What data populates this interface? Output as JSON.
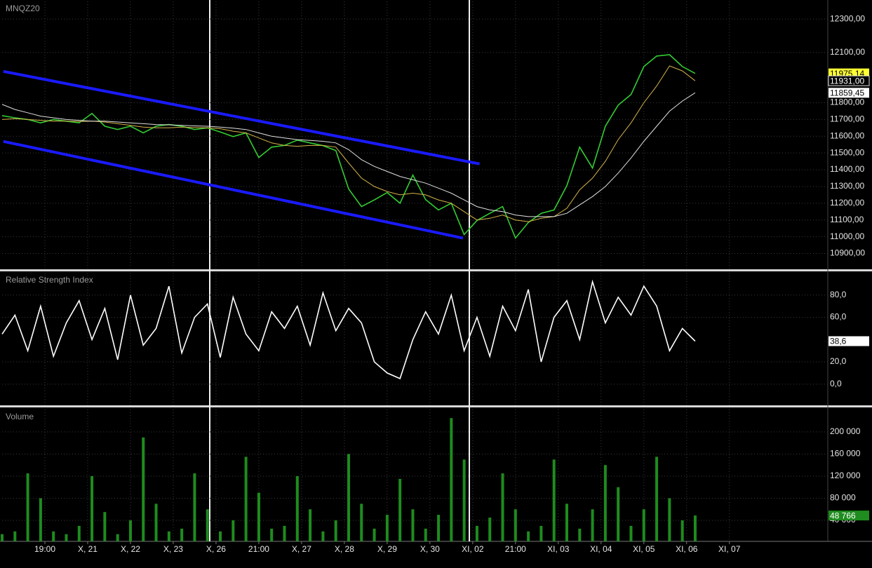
{
  "chart_data": [
    {
      "type": "line",
      "title": "MNQZ20",
      "x": [
        0,
        3,
        6,
        9,
        12,
        15,
        18,
        21,
        24,
        27,
        30,
        33,
        36,
        39,
        42,
        45,
        48,
        51,
        54,
        57,
        60,
        63,
        66,
        69,
        72,
        75,
        78,
        81,
        84,
        87,
        90,
        93,
        96,
        99,
        102,
        105,
        108,
        111,
        114,
        117,
        120,
        123,
        126,
        129,
        132,
        135,
        138,
        141,
        144,
        147,
        150,
        153,
        156,
        159,
        162
      ],
      "xlim": [
        0,
        193
      ],
      "ylim": [
        10810,
        12405
      ],
      "yticks": [
        {
          "value": 12300,
          "label": "12300,00"
        },
        {
          "value": 12100,
          "label": "12100,00"
        },
        {
          "value": 11800,
          "label": "11800,00"
        },
        {
          "value": 11700,
          "label": "11700,00"
        },
        {
          "value": 11600,
          "label": "11600,00"
        },
        {
          "value": 11500,
          "label": "11500,00"
        },
        {
          "value": 11400,
          "label": "11400,00"
        },
        {
          "value": 11300,
          "label": "11300,00"
        },
        {
          "value": 11200,
          "label": "11200,00"
        },
        {
          "value": 11100,
          "label": "11100,00"
        },
        {
          "value": 11000,
          "label": "11000,00"
        },
        {
          "value": 10900,
          "label": "10900,00"
        }
      ],
      "series": [
        {
          "color": "#33cc33",
          "label_color": "#ffff33",
          "values": [
            11723,
            11710,
            11700,
            11680,
            11700,
            11690,
            11680,
            11736,
            11660,
            11640,
            11660,
            11620,
            11660,
            11670,
            11660,
            11640,
            11650,
            11625,
            11598,
            11620,
            11473,
            11535,
            11545,
            11577,
            11560,
            11544,
            11515,
            11285,
            11180,
            11220,
            11264,
            11200,
            11368,
            11222,
            11160,
            11200,
            11013,
            11097,
            11140,
            11180,
            10992,
            11085,
            11140,
            11160,
            11305,
            11535,
            11410,
            11660,
            11786,
            11849,
            12016,
            12079,
            12087,
            12016,
            11975.14
          ],
          "value_labels": [
            null,
            null,
            null,
            null,
            null,
            null,
            null,
            null,
            null,
            null,
            null,
            null,
            null,
            null,
            null,
            null,
            null,
            null,
            null,
            null,
            null,
            null,
            null,
            null,
            null,
            null,
            null,
            null,
            null,
            null,
            null,
            null,
            null,
            null,
            null,
            null,
            null,
            null,
            null,
            null,
            null,
            null,
            null,
            null,
            null,
            null,
            null,
            null,
            null,
            null,
            null,
            null,
            null,
            null,
            "11975,14"
          ]
        },
        {
          "color": "#d4b44a",
          "label_color": "#000000",
          "values": [
            11700,
            11705,
            11700,
            11695,
            11690,
            11690,
            11688,
            11690,
            11685,
            11675,
            11665,
            11655,
            11650,
            11650,
            11655,
            11652,
            11650,
            11645,
            11630,
            11620,
            11590,
            11560,
            11545,
            11540,
            11545,
            11545,
            11535,
            11440,
            11350,
            11300,
            11270,
            11250,
            11260,
            11250,
            11220,
            11200,
            11150,
            11100,
            11110,
            11130,
            11100,
            11090,
            11110,
            11120,
            11170,
            11280,
            11350,
            11450,
            11580,
            11680,
            11800,
            11900,
            12020,
            11990,
            11931
          ],
          "value_labels": [
            null,
            null,
            null,
            null,
            null,
            null,
            null,
            null,
            null,
            null,
            null,
            null,
            null,
            null,
            null,
            null,
            null,
            null,
            null,
            null,
            null,
            null,
            null,
            null,
            null,
            null,
            null,
            null,
            null,
            null,
            null,
            null,
            null,
            null,
            null,
            null,
            null,
            null,
            null,
            null,
            null,
            null,
            null,
            null,
            null,
            null,
            null,
            null,
            null,
            null,
            null,
            null,
            null,
            null,
            "11931,00"
          ]
        },
        {
          "color": "#e0e0e0",
          "label_color": "#ffffff",
          "values": [
            11790,
            11760,
            11740,
            11720,
            11710,
            11700,
            11695,
            11690,
            11690,
            11685,
            11680,
            11675,
            11670,
            11668,
            11665,
            11662,
            11660,
            11655,
            11648,
            11640,
            11620,
            11600,
            11590,
            11580,
            11575,
            11570,
            11560,
            11520,
            11460,
            11420,
            11390,
            11360,
            11340,
            11320,
            11290,
            11260,
            11220,
            11180,
            11160,
            11150,
            11130,
            11120,
            11120,
            11120,
            11140,
            11190,
            11240,
            11300,
            11380,
            11470,
            11570,
            11660,
            11750,
            11810,
            11859.45
          ],
          "value_labels": [
            null,
            null,
            null,
            null,
            null,
            null,
            null,
            null,
            null,
            null,
            null,
            null,
            null,
            null,
            null,
            null,
            null,
            null,
            null,
            null,
            null,
            null,
            null,
            null,
            null,
            null,
            null,
            null,
            null,
            null,
            null,
            null,
            null,
            null,
            null,
            null,
            null,
            null,
            null,
            null,
            null,
            null,
            null,
            null,
            null,
            null,
            null,
            null,
            null,
            null,
            null,
            null,
            null,
            null,
            "11859,45"
          ]
        }
      ],
      "trendlines": [
        {
          "color": "#1a1aff",
          "x": [
            0.3,
            111.6
          ],
          "y": [
            11987,
            11435
          ]
        },
        {
          "color": "#1a1aff",
          "x": [
            0.3,
            107.7
          ],
          "y": [
            11569,
            10992
          ]
        }
      ]
    },
    {
      "type": "line",
      "title": "Relative Strength Index",
      "x": [
        0,
        3,
        6,
        9,
        12,
        15,
        18,
        21,
        24,
        27,
        30,
        33,
        36,
        39,
        42,
        45,
        48,
        51,
        54,
        57,
        60,
        63,
        66,
        69,
        72,
        75,
        78,
        81,
        84,
        87,
        90,
        93,
        96,
        99,
        102,
        105,
        108,
        111,
        114,
        117,
        120,
        123,
        126,
        129,
        132,
        135,
        138,
        141,
        144,
        147,
        150,
        153,
        156,
        159,
        162
      ],
      "xlim": [
        0,
        193
      ],
      "ylim": [
        -19,
        100
      ],
      "yticks": [
        {
          "value": 80,
          "label": "80,0"
        },
        {
          "value": 60,
          "label": "60,0"
        },
        {
          "value": 20,
          "label": "20,0"
        },
        {
          "value": 0,
          "label": "0,0"
        }
      ],
      "series": [
        {
          "color": "#ffffff",
          "label_color": "#ffffff",
          "values": [
            45,
            62,
            30,
            70,
            25,
            55,
            75,
            40,
            68,
            22,
            80,
            35,
            50,
            88,
            28,
            60,
            72,
            24,
            78,
            45,
            30,
            65,
            50,
            70,
            35,
            82,
            48,
            68,
            55,
            20,
            10,
            5,
            40,
            65,
            45,
            80,
            30,
            60,
            25,
            70,
            48,
            85,
            20,
            60,
            75,
            40,
            92,
            55,
            78,
            62,
            88,
            70,
            30,
            50,
            38.6
          ],
          "value_labels": [
            null,
            null,
            null,
            null,
            null,
            null,
            null,
            null,
            null,
            null,
            null,
            null,
            null,
            null,
            null,
            null,
            null,
            null,
            null,
            null,
            null,
            null,
            null,
            null,
            null,
            null,
            null,
            null,
            null,
            null,
            null,
            null,
            null,
            null,
            null,
            null,
            null,
            null,
            null,
            null,
            null,
            null,
            null,
            null,
            null,
            null,
            null,
            null,
            null,
            null,
            null,
            null,
            null,
            null,
            "38,6"
          ]
        }
      ]
    },
    {
      "type": "bar",
      "title": "Volume",
      "x": [
        0,
        3,
        6,
        9,
        12,
        15,
        18,
        21,
        24,
        27,
        30,
        33,
        36,
        39,
        42,
        45,
        48,
        51,
        54,
        57,
        60,
        63,
        66,
        69,
        72,
        75,
        78,
        81,
        84,
        87,
        90,
        93,
        96,
        99,
        102,
        105,
        108,
        111,
        114,
        117,
        120,
        123,
        126,
        129,
        132,
        135,
        138,
        141,
        144,
        147,
        150,
        153,
        156,
        159,
        162
      ],
      "xlim": [
        0,
        193
      ],
      "ylim": [
        2000,
        240500
      ],
      "color": "#1e8c1e",
      "label_color": "#1e8c1e",
      "values": [
        15000,
        20000,
        125000,
        80000,
        20000,
        15000,
        30000,
        120000,
        55000,
        15000,
        40000,
        190000,
        70000,
        20000,
        25000,
        125000,
        60000,
        20000,
        40000,
        155000,
        90000,
        25000,
        30000,
        120000,
        60000,
        20000,
        40000,
        160000,
        70000,
        25000,
        50000,
        115000,
        60000,
        25000,
        50000,
        225000,
        150000,
        30000,
        45000,
        125000,
        60000,
        20000,
        30000,
        150000,
        70000,
        25000,
        60000,
        140000,
        100000,
        30000,
        60000,
        155000,
        80000,
        40000,
        48766
      ],
      "value_labels": [
        null,
        null,
        null,
        null,
        null,
        null,
        null,
        null,
        null,
        null,
        null,
        null,
        null,
        null,
        null,
        null,
        null,
        null,
        null,
        null,
        null,
        null,
        null,
        null,
        null,
        null,
        null,
        null,
        null,
        null,
        null,
        null,
        null,
        null,
        null,
        null,
        null,
        null,
        null,
        null,
        null,
        null,
        null,
        null,
        null,
        null,
        null,
        null,
        null,
        null,
        null,
        null,
        null,
        null,
        "48 766"
      ],
      "yticks": [
        {
          "value": 200000,
          "label": "200 000"
        },
        {
          "value": 160000,
          "label": "160 000"
        },
        {
          "value": 120000,
          "label": "120 000"
        },
        {
          "value": 80000,
          "label": "80 000"
        },
        {
          "value": 40000,
          "label": "40 000"
        }
      ],
      "xticks": [
        {
          "value": 10,
          "label": "19:00"
        },
        {
          "value": 20,
          "label": "X, 21"
        },
        {
          "value": 30,
          "label": "X, 22"
        },
        {
          "value": 40,
          "label": "X, 23"
        },
        {
          "value": 50,
          "label": "X, 26"
        },
        {
          "value": 60,
          "label": "21:00"
        },
        {
          "value": 70,
          "label": "X, 27"
        },
        {
          "value": 80,
          "label": "X, 28"
        },
        {
          "value": 90,
          "label": "X, 29"
        },
        {
          "value": 100,
          "label": "X, 30"
        },
        {
          "value": 110,
          "label": "XI, 02"
        },
        {
          "value": 120,
          "label": "21:00"
        },
        {
          "value": 130,
          "label": "XI, 03"
        },
        {
          "value": 140,
          "label": "XI, 04"
        },
        {
          "value": 150,
          "label": "XI, 05"
        },
        {
          "value": 160,
          "label": "XI, 06"
        },
        {
          "value": 170,
          "label": "XI, 07"
        }
      ]
    }
  ]
}
